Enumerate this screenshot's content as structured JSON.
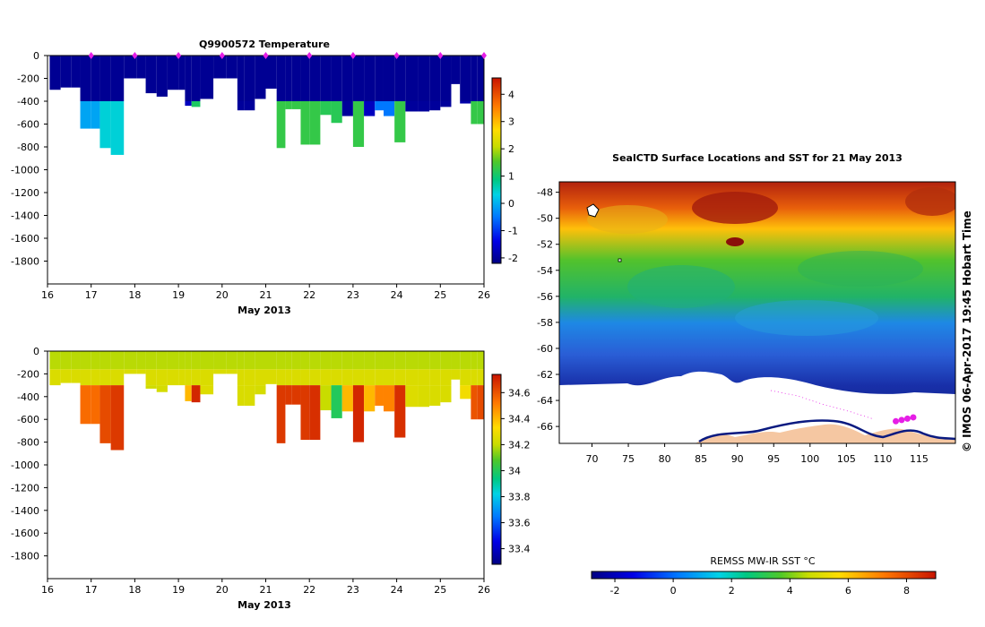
{
  "figure": {
    "right_credit": "©  IMOS 06-Apr-2017 19:45 Hobart Time"
  },
  "chart_data": [
    {
      "type": "heatmap",
      "title": "Q9900572  Temperature",
      "xlabel": "May 2013",
      "ylabel": "",
      "xlim": [
        16,
        26
      ],
      "ylim": [
        -2000,
        0
      ],
      "x_ticks": [
        "16",
        "17",
        "18",
        "19",
        "20",
        "21",
        "22",
        "23",
        "24",
        "25",
        "26"
      ],
      "y_ticks": [
        "0",
        "-200",
        "-400",
        "-600",
        "-800",
        "-1000",
        "-1200",
        "-1400",
        "-1600",
        "-1800"
      ],
      "colorbar": {
        "min": -2.2,
        "max": 4.6,
        "ticks": [
          "4",
          "3",
          "2",
          "1",
          "0",
          "-1",
          "-2"
        ]
      },
      "surface_markers_day": [
        17,
        18,
        19,
        20,
        21,
        22,
        23,
        24,
        25,
        26
      ],
      "profiles_day": [
        16.05,
        16.3,
        16.55,
        16.75,
        17.0,
        17.2,
        17.45,
        17.75,
        18.05,
        18.25,
        18.5,
        18.75,
        19.0,
        19.15,
        19.3,
        19.5,
        19.8,
        20.1,
        20.35,
        20.5,
        20.75,
        21.0,
        21.25,
        21.45,
        21.6,
        21.8,
        22.0,
        22.25,
        22.5,
        22.75,
        23.0,
        23.25,
        23.5,
        23.7,
        23.95,
        24.2,
        24.5,
        24.75,
        25.0,
        25.25,
        25.45,
        25.7,
        25.85
      ],
      "max_depth_m": [
        300,
        280,
        280,
        640,
        640,
        810,
        870,
        200,
        200,
        330,
        360,
        300,
        300,
        440,
        450,
        380,
        200,
        200,
        480,
        480,
        380,
        290,
        810,
        470,
        470,
        780,
        780,
        520,
        590,
        530,
        800,
        530,
        480,
        530,
        760,
        490,
        490,
        480,
        450,
        250,
        420,
        600,
        600
      ],
      "deep_temperature_c": [
        -2,
        -2,
        -2,
        -0.1,
        -0.1,
        0.4,
        0.4,
        -2,
        -2,
        -2,
        -2,
        -2,
        -2,
        -1.7,
        1.1,
        1.2,
        -2,
        -2,
        -2,
        -2,
        -2,
        -2,
        1.3,
        1.3,
        1.3,
        1.3,
        1.3,
        1.2,
        1.2,
        -2,
        1.3,
        -1.7,
        -0.5,
        -0.5,
        1.3,
        -2,
        -2,
        -2,
        -2,
        -2,
        -1.9,
        1.3,
        1.3
      ]
    },
    {
      "type": "heatmap",
      "title": "",
      "xlabel": "May 2013",
      "ylabel": "",
      "xlim": [
        16,
        26
      ],
      "ylim": [
        -2000,
        0
      ],
      "x_ticks": [
        "16",
        "17",
        "18",
        "19",
        "20",
        "21",
        "22",
        "23",
        "24",
        "25",
        "26"
      ],
      "y_ticks": [
        "0",
        "-200",
        "-400",
        "-600",
        "-800",
        "-1000",
        "-1200",
        "-1400",
        "-1600",
        "-1800"
      ],
      "colorbar": {
        "min": 33.28,
        "max": 34.74,
        "ticks": [
          "34.6",
          "34.4",
          "34.2",
          "34",
          "33.8",
          "33.6",
          "33.4"
        ]
      },
      "profiles_day": [
        16.05,
        16.3,
        16.55,
        16.75,
        17.0,
        17.2,
        17.45,
        17.75,
        18.05,
        18.25,
        18.5,
        18.75,
        19.0,
        19.15,
        19.3,
        19.5,
        19.8,
        20.1,
        20.35,
        20.5,
        20.75,
        21.0,
        21.25,
        21.45,
        21.6,
        21.8,
        22.0,
        22.25,
        22.5,
        22.75,
        23.0,
        23.25,
        23.5,
        23.7,
        23.95,
        24.2,
        24.5,
        24.75,
        25.0,
        25.25,
        25.45,
        25.7,
        25.85
      ],
      "max_depth_m": [
        300,
        280,
        280,
        640,
        640,
        810,
        870,
        200,
        200,
        330,
        360,
        300,
        300,
        440,
        450,
        380,
        200,
        200,
        480,
        480,
        380,
        290,
        810,
        470,
        470,
        780,
        780,
        520,
        590,
        530,
        800,
        530,
        480,
        530,
        760,
        490,
        490,
        480,
        450,
        250,
        420,
        600,
        600
      ],
      "deep_salinity_psu": [
        34.2,
        34.2,
        34.25,
        34.55,
        34.55,
        34.62,
        34.66,
        34.2,
        34.2,
        34.22,
        34.23,
        34.22,
        34.22,
        34.4,
        34.7,
        34.25,
        34.2,
        34.2,
        34.24,
        34.24,
        34.23,
        34.22,
        34.66,
        34.66,
        34.66,
        34.66,
        34.68,
        34.2,
        34.0,
        34.4,
        34.7,
        34.4,
        34.5,
        34.5,
        34.68,
        34.25,
        34.24,
        34.24,
        34.24,
        34.22,
        34.3,
        34.6,
        34.62
      ]
    },
    {
      "type": "heatmap",
      "title": "SealCTD Surface Locations and SST for 21 May 2013",
      "xlabel": "",
      "ylabel": "",
      "xlim": [
        65.5,
        120
      ],
      "ylim": [
        -67.3,
        -47.2
      ],
      "x_ticks": [
        "70",
        "75",
        "80",
        "85",
        "90",
        "95",
        "100",
        "105",
        "110",
        "115"
      ],
      "y_ticks": [
        "-48",
        "-50",
        "-52",
        "-54",
        "-56",
        "-58",
        "-60",
        "-62",
        "-64",
        "-66"
      ],
      "colorbar": {
        "label": "REMSS MW-IR SST °C",
        "min": -2.8,
        "max": 9.0,
        "ticks": [
          "-2",
          "0",
          "2",
          "4",
          "6",
          "8"
        ]
      },
      "seal_positions": [
        {
          "lon": 111.8,
          "lat": -65.6
        },
        {
          "lon": 112.6,
          "lat": -65.5
        },
        {
          "lon": 113.4,
          "lat": -65.4
        },
        {
          "lon": 114.2,
          "lat": -65.3
        }
      ]
    }
  ]
}
